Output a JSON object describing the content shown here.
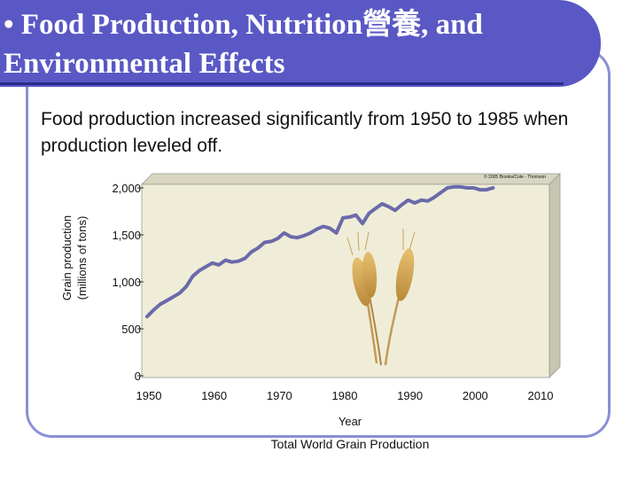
{
  "slide": {
    "title": "• Food Production, Nutrition營養, and Environmental Effects",
    "subtitle": "Food production increased significantly from 1950 to 1985 when production leveled off."
  },
  "colors": {
    "title_bg": "#5a58c4",
    "frame": "#8a8fd6",
    "plot_bg": "#efedd8",
    "line": "#6a6aaa",
    "wheat": "#d8a850"
  },
  "chart_data": {
    "type": "line",
    "title": "Total World Grain Production",
    "xlabel": "Year",
    "ylabel": "Grain production (millions of tons)",
    "credit": "© 2005 Brooks/Cole - Thomson",
    "xlim": [
      1950,
      2010
    ],
    "ylim": [
      0,
      2000
    ],
    "x_ticks": [
      1950,
      1960,
      1970,
      1980,
      1990,
      2000,
      2010
    ],
    "y_ticks": [
      0,
      500,
      1000,
      1500,
      2000
    ],
    "y_tick_labels": [
      "0",
      "500",
      "1,000",
      "1,500",
      "2,000"
    ],
    "series": [
      {
        "name": "World grain production",
        "x": [
          1950,
          1951,
          1952,
          1953,
          1954,
          1955,
          1956,
          1957,
          1958,
          1959,
          1960,
          1961,
          1962,
          1963,
          1964,
          1965,
          1966,
          1967,
          1968,
          1969,
          1970,
          1971,
          1972,
          1973,
          1974,
          1975,
          1976,
          1977,
          1978,
          1979,
          1980,
          1981,
          1982,
          1983,
          1984,
          1985,
          1986,
          1987,
          1988,
          1989,
          1990,
          1991,
          1992,
          1993,
          1994,
          1995,
          1996,
          1997,
          1998,
          1999,
          2000,
          2001,
          2002,
          2003
        ],
        "values": [
          630,
          700,
          760,
          800,
          840,
          880,
          950,
          1060,
          1120,
          1160,
          1200,
          1180,
          1230,
          1210,
          1220,
          1250,
          1320,
          1360,
          1420,
          1430,
          1460,
          1520,
          1480,
          1470,
          1490,
          1520,
          1560,
          1590,
          1570,
          1520,
          1680,
          1690,
          1710,
          1620,
          1730,
          1780,
          1830,
          1800,
          1760,
          1820,
          1870,
          1840,
          1870,
          1860,
          1900,
          1950,
          2000,
          2010,
          2010,
          2000,
          2000,
          1980,
          1980,
          2000
        ]
      }
    ]
  }
}
